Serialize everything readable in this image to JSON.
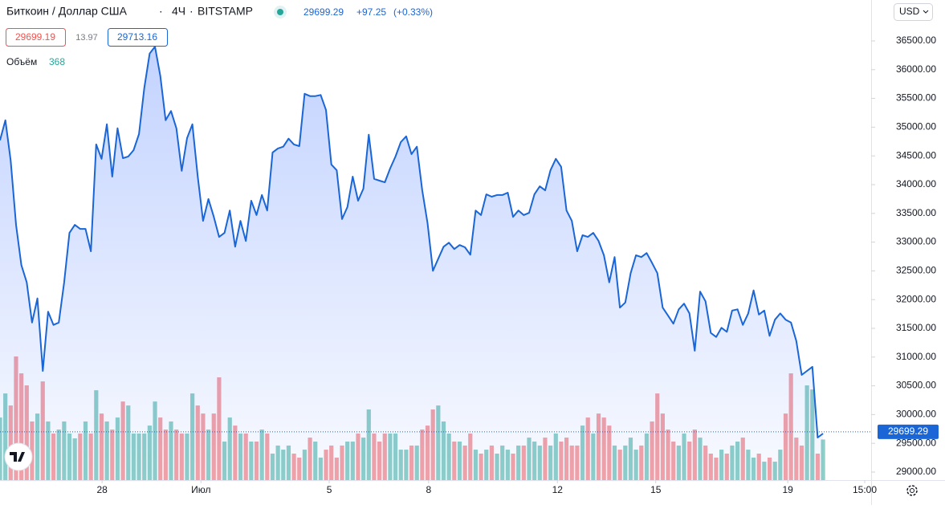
{
  "header": {
    "symbol": "Биткоин / Доллар США",
    "interval": "4Ч",
    "exchange": "BITSTAMP",
    "last": "29699.29",
    "change": "+97.25",
    "change_pct": "(+0.33%)",
    "bid": "29699.19",
    "spread": "13.97",
    "ask": "29713.16",
    "volume_label": "Объём",
    "volume_value": "368",
    "currency": "USD"
  },
  "chart_data": {
    "type": "area",
    "color": "#1a66d6",
    "volume_up_color": "#8fd0c8",
    "volume_down_color": "#f5a3a6",
    "xlim": [
      0,
      163
    ],
    "xticks": [
      {
        "value": 19.1,
        "label": "28"
      },
      {
        "value": 37.6,
        "label": "Июл"
      },
      {
        "value": 61.6,
        "label": "5"
      },
      {
        "value": 80.2,
        "label": "8"
      },
      {
        "value": 104.3,
        "label": "12"
      },
      {
        "value": 122.7,
        "label": "15"
      },
      {
        "value": 147.4,
        "label": "19"
      },
      {
        "value": 161.8,
        "label": "15:00"
      }
    ],
    "ylim": [
      28832,
      37212
    ],
    "yticks": [
      {
        "value": 29000,
        "label": "29000.00"
      },
      {
        "value": 29500,
        "label": "29500.00"
      },
      {
        "value": 30000,
        "label": "30000.00"
      },
      {
        "value": 30500,
        "label": "30500.00"
      },
      {
        "value": 31000,
        "label": "31000.00"
      },
      {
        "value": 31500,
        "label": "31500.00"
      },
      {
        "value": 32000,
        "label": "32000.00"
      },
      {
        "value": 32500,
        "label": "32500.00"
      },
      {
        "value": 33000,
        "label": "33000.00"
      },
      {
        "value": 33500,
        "label": "33500.00"
      },
      {
        "value": 34000,
        "label": "34000.00"
      },
      {
        "value": 34500,
        "label": "34500.00"
      },
      {
        "value": 35000,
        "label": "35000.00"
      },
      {
        "value": 35500,
        "label": "35500.00"
      },
      {
        "value": 36000,
        "label": "36000.00"
      },
      {
        "value": 36500,
        "label": "36500.00"
      }
    ],
    "last_price": 29699.29,
    "values": [
      34770,
      35120,
      34420,
      33300,
      32600,
      32300,
      31600,
      32020,
      30760,
      31790,
      31560,
      31600,
      32300,
      33160,
      33300,
      33230,
      33230,
      32840,
      34700,
      34450,
      35050,
      34140,
      34980,
      34460,
      34490,
      34600,
      34880,
      35680,
      36280,
      36400,
      35890,
      35120,
      35280,
      34980,
      34240,
      34810,
      35050,
      34140,
      33370,
      33750,
      33440,
      33090,
      33160,
      33550,
      32920,
      33370,
      33020,
      33720,
      33470,
      33820,
      33550,
      34560,
      34630,
      34660,
      34800,
      34700,
      34670,
      35580,
      35540,
      35540,
      35560,
      35300,
      34350,
      34250,
      33400,
      33610,
      34140,
      33720,
      33930,
      34870,
      34100,
      34070,
      34040,
      34280,
      34490,
      34740,
      34840,
      34530,
      34660,
      33900,
      33330,
      32500,
      32710,
      32920,
      32990,
      32880,
      32950,
      32910,
      32780,
      33550,
      33470,
      33830,
      33790,
      33820,
      33820,
      33860,
      33440,
      33550,
      33470,
      33510,
      33830,
      33970,
      33900,
      34250,
      34450,
      34310,
      33550,
      33370,
      32840,
      33120,
      33090,
      33160,
      33020,
      32770,
      32300,
      32740,
      31860,
      31950,
      32460,
      32770,
      32740,
      32810,
      32640,
      32460,
      31860,
      31720,
      31580,
      31830,
      31930,
      31760,
      31110,
      32140,
      31970,
      31420,
      31350,
      31510,
      31440,
      31810,
      31830,
      31560,
      31760,
      32160,
      31740,
      31810,
      31370,
      31650,
      31760,
      31650,
      31600,
      31280,
      30690,
      30760,
      30830,
      29600,
      29670
    ],
    "volume_ylim": [
      0,
      1600
    ],
    "volumes": [
      567,
      785,
      676,
      1120,
      967,
      858,
      531,
      603,
      894,
      531,
      422,
      458,
      531,
      422,
      378,
      422,
      531,
      422,
      814,
      603,
      531,
      458,
      567,
      712,
      676,
      422,
      422,
      422,
      494,
      712,
      567,
      458,
      531,
      458,
      422,
      422,
      785,
      676,
      603,
      458,
      603,
      931,
      349,
      567,
      494,
      422,
      422,
      349,
      349,
      458,
      422,
      240,
      313,
      276,
      313,
      240,
      204,
      276,
      385,
      349,
      204,
      276,
      313,
      204,
      313,
      349,
      349,
      422,
      385,
      640,
      422,
      349,
      422,
      422,
      422,
      276,
      276,
      313,
      313,
      458,
      494,
      640,
      676,
      531,
      422,
      349,
      349,
      313,
      422,
      276,
      240,
      276,
      313,
      240,
      313,
      276,
      240,
      313,
      313,
      385,
      349,
      313,
      385,
      313,
      422,
      349,
      385,
      313,
      313,
      494,
      567,
      422,
      603,
      567,
      494,
      313,
      276,
      313,
      385,
      276,
      313,
      422,
      531,
      785,
      603,
      458,
      349,
      313,
      422,
      349,
      458,
      385,
      313,
      240,
      204,
      276,
      240,
      313,
      349,
      385,
      276,
      204,
      240,
      167,
      204,
      167,
      276,
      603,
      967,
      385,
      313,
      858,
      821,
      240,
      368
    ]
  }
}
